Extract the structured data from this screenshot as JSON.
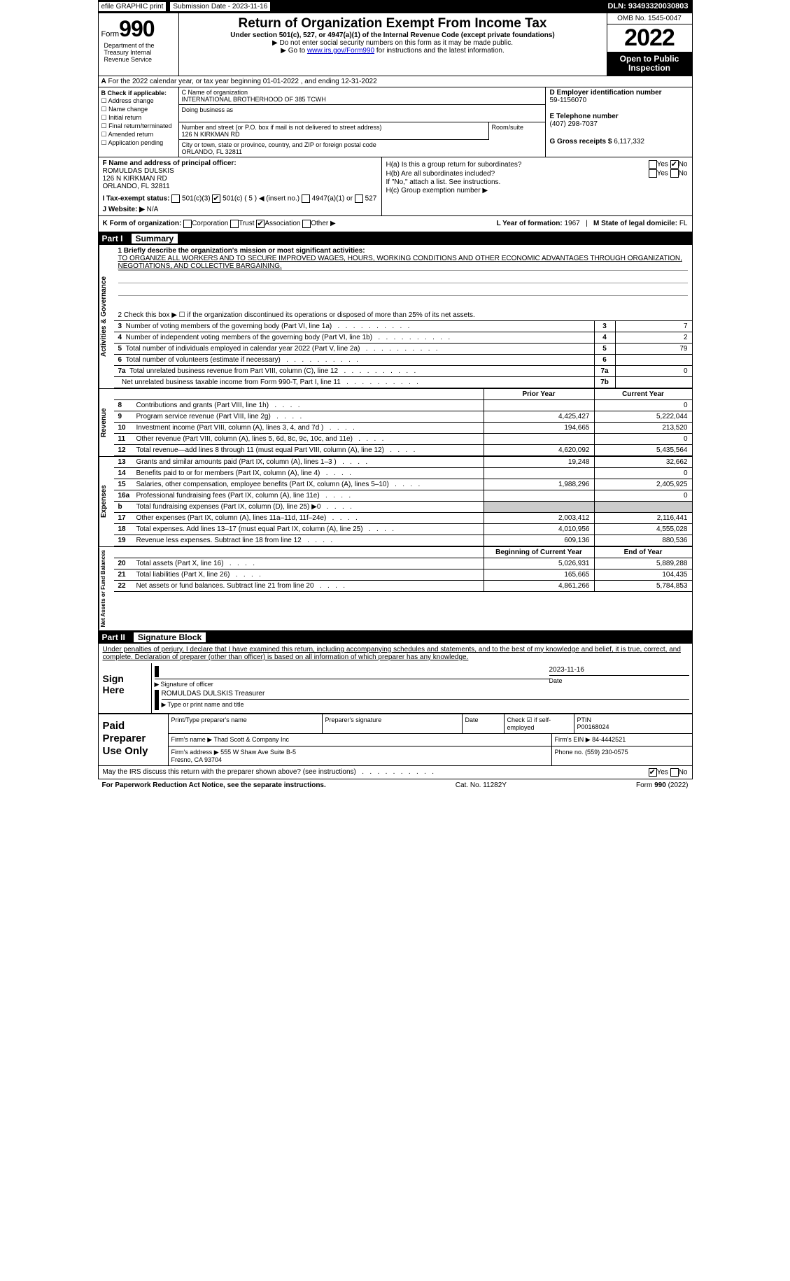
{
  "topbar": {
    "efile": "efile GRAPHIC print",
    "sub_date": "Submission Date - 2023-11-16",
    "dln": "DLN: 93493320030803"
  },
  "header": {
    "form_word": "Form",
    "form_num": "990",
    "title": "Return of Organization Exempt From Income Tax",
    "subtitle": "Under section 501(c), 527, or 4947(a)(1) of the Internal Revenue Code (except private foundations)",
    "note1": "▶ Do not enter social security numbers on this form as it may be made public.",
    "note2_pre": "▶ Go to ",
    "note2_link": "www.irs.gov/Form990",
    "note2_post": " for instructions and the latest information.",
    "dept": "Department of the Treasury Internal Revenue Service",
    "omb": "OMB No. 1545-0047",
    "year": "2022",
    "open": "Open to Public Inspection"
  },
  "lineA": {
    "a_label": "A",
    "text": "For the 2022 calendar year, or tax year beginning 01-01-2022   , and ending 12-31-2022"
  },
  "colB": {
    "label": "B Check if applicable:",
    "opts": [
      "Address change",
      "Name change",
      "Initial return",
      "Final return/terminated",
      "Amended return",
      "Application pending"
    ]
  },
  "colC": {
    "name_lbl": "C Name of organization",
    "name": "INTERNATIONAL BROTHERHOOD OF 385 TCWH",
    "dba_lbl": "Doing business as",
    "addr_lbl": "Number and street (or P.O. box if mail is not delivered to street address)",
    "addr": "126 N KIRKMAN RD",
    "room_lbl": "Room/suite",
    "city_lbl": "City or town, state or province, country, and ZIP or foreign postal code",
    "city": "ORLANDO, FL  32811"
  },
  "colD": {
    "ein_lbl": "D Employer identification number",
    "ein": "59-1156070",
    "tel_lbl": "E Telephone number",
    "tel": "(407) 298-7037",
    "gross_lbl": "G Gross receipts $",
    "gross": "6,117,332"
  },
  "officer": {
    "lbl": "F  Name and address of principal officer:",
    "name": "ROMULDAS DULSKIS",
    "addr": "126 N KIRKMAN RD",
    "city": "ORLANDO, FL  32811"
  },
  "hbox": {
    "ha": "H(a)  Is this a group return for subordinates?",
    "hb": "H(b)  Are all subordinates included?",
    "hb_note": "If \"No,\" attach a list. See instructions.",
    "hc": "H(c)  Group exemption number ▶",
    "yes": "Yes",
    "no": "No"
  },
  "rowI": {
    "lbl": "I  Tax-exempt status:",
    "o1": "501(c)(3)",
    "o2": "501(c) ( 5 ) ◀ (insert no.)",
    "o3": "4947(a)(1) or",
    "o4": "527"
  },
  "rowJ": {
    "lbl": "J  Website: ▶",
    "val": "N/A"
  },
  "rowK": {
    "lbl": "K Form of organization:",
    "o1": "Corporation",
    "o2": "Trust",
    "o3": "Association",
    "o4": "Other ▶",
    "l_lbl": "L Year of formation:",
    "l_val": "1967",
    "m_lbl": "M State of legal domicile:",
    "m_val": "FL"
  },
  "part1": {
    "title": "Part I",
    "heading": "Summary",
    "vtab1": "Activities & Governance",
    "vtab2": "Revenue",
    "vtab3": "Expenses",
    "vtab4": "Net Assets or Fund Balances",
    "l1_lbl": "1  Briefly describe the organization's mission or most significant activities:",
    "l1_text": "TO ORGANIZE ALL WORKERS AND TO SECURE IMPROVED WAGES, HOURS, WORKING CONDITIONS AND OTHER ECONOMIC ADVANTAGES THROUGH ORGANIZATION, NEGOTIATIONS, AND COLLECTIVE BARGAINING.",
    "l2": "2   Check this box ▶ ☐  if the organization discontinued its operations or disposed of more than 25% of its net assets.",
    "rows_gov": [
      {
        "n": "3",
        "d": "Number of voting members of the governing body (Part VI, line 1a)",
        "nb": "3",
        "v": "7"
      },
      {
        "n": "4",
        "d": "Number of independent voting members of the governing body (Part VI, line 1b)",
        "nb": "4",
        "v": "2"
      },
      {
        "n": "5",
        "d": "Total number of individuals employed in calendar year 2022 (Part V, line 2a)",
        "nb": "5",
        "v": "79"
      },
      {
        "n": "6",
        "d": "Total number of volunteers (estimate if necessary)",
        "nb": "6",
        "v": ""
      },
      {
        "n": "7a",
        "d": "Total unrelated business revenue from Part VIII, column (C), line 12",
        "nb": "7a",
        "v": "0"
      },
      {
        "n": "",
        "d": "Net unrelated business taxable income from Form 990-T, Part I, line 11",
        "nb": "7b",
        "v": ""
      }
    ],
    "pyhead": "Prior Year",
    "cyhead": "Current Year",
    "rev_rows": [
      {
        "n": "8",
        "d": "Contributions and grants (Part VIII, line 1h)",
        "py": "",
        "cy": "0"
      },
      {
        "n": "9",
        "d": "Program service revenue (Part VIII, line 2g)",
        "py": "4,425,427",
        "cy": "5,222,044"
      },
      {
        "n": "10",
        "d": "Investment income (Part VIII, column (A), lines 3, 4, and 7d )",
        "py": "194,665",
        "cy": "213,520"
      },
      {
        "n": "11",
        "d": "Other revenue (Part VIII, column (A), lines 5, 6d, 8c, 9c, 10c, and 11e)",
        "py": "",
        "cy": "0"
      },
      {
        "n": "12",
        "d": "Total revenue—add lines 8 through 11 (must equal Part VIII, column (A), line 12)",
        "py": "4,620,092",
        "cy": "5,435,564"
      }
    ],
    "exp_rows": [
      {
        "n": "13",
        "d": "Grants and similar amounts paid (Part IX, column (A), lines 1–3 )",
        "py": "19,248",
        "cy": "32,662"
      },
      {
        "n": "14",
        "d": "Benefits paid to or for members (Part IX, column (A), line 4)",
        "py": "",
        "cy": "0"
      },
      {
        "n": "15",
        "d": "Salaries, other compensation, employee benefits (Part IX, column (A), lines 5–10)",
        "py": "1,988,296",
        "cy": "2,405,925"
      },
      {
        "n": "16a",
        "d": "Professional fundraising fees (Part IX, column (A), line 11e)",
        "py": "",
        "cy": "0"
      },
      {
        "n": "b",
        "d": "Total fundraising expenses (Part IX, column (D), line 25) ▶0",
        "py": "grey",
        "cy": "grey"
      },
      {
        "n": "17",
        "d": "Other expenses (Part IX, column (A), lines 11a–11d, 11f–24e)",
        "py": "2,003,412",
        "cy": "2,116,441"
      },
      {
        "n": "18",
        "d": "Total expenses. Add lines 13–17 (must equal Part IX, column (A), line 25)",
        "py": "4,010,956",
        "cy": "4,555,028"
      },
      {
        "n": "19",
        "d": "Revenue less expenses. Subtract line 18 from line 12",
        "py": "609,136",
        "cy": "880,536"
      }
    ],
    "na_head1": "Beginning of Current Year",
    "na_head2": "End of Year",
    "na_rows": [
      {
        "n": "20",
        "d": "Total assets (Part X, line 16)",
        "py": "5,026,931",
        "cy": "5,889,288"
      },
      {
        "n": "21",
        "d": "Total liabilities (Part X, line 26)",
        "py": "165,665",
        "cy": "104,435"
      },
      {
        "n": "22",
        "d": "Net assets or fund balances. Subtract line 21 from line 20",
        "py": "4,861,266",
        "cy": "5,784,853"
      }
    ]
  },
  "part2": {
    "title": "Part II",
    "heading": "Signature Block",
    "penalty": "Under penalties of perjury, I declare that I have examined this return, including accompanying schedules and statements, and to the best of my knowledge and belief, it is true, correct, and complete. Declaration of preparer (other than officer) is based on all information of which preparer has any knowledge.",
    "sign_here": "Sign Here",
    "sig_of_officer": "Signature of officer",
    "date_lbl": "Date",
    "sig_date": "2023-11-16",
    "officer_name": "ROMULDAS DULSKIS Treasurer",
    "type_name": "Type or print name and title"
  },
  "preparer": {
    "label": "Paid Preparer Use Only",
    "print_name_lbl": "Print/Type preparer's name",
    "sig_lbl": "Preparer's signature",
    "date_lbl": "Date",
    "check_lbl": "Check ☑ if self-employed",
    "ptin_lbl": "PTIN",
    "ptin": "P00168024",
    "firm_name_lbl": "Firm's name   ▶",
    "firm_name": "Thad Scott & Company Inc",
    "firm_ein_lbl": "Firm's EIN ▶",
    "firm_ein": "84-4442521",
    "firm_addr_lbl": "Firm's address ▶",
    "firm_addr1": "555 W Shaw Ave Suite B-5",
    "firm_addr2": "Fresno, CA  93704",
    "phone_lbl": "Phone no.",
    "phone": "(559) 230-0575"
  },
  "footer": {
    "discuss": "May the IRS discuss this return with the preparer shown above? (see instructions)",
    "yes": "Yes",
    "no": "No",
    "paperwork": "For Paperwork Reduction Act Notice, see the separate instructions.",
    "cat": "Cat. No. 11282Y",
    "formpage": "Form 990 (2022)"
  }
}
